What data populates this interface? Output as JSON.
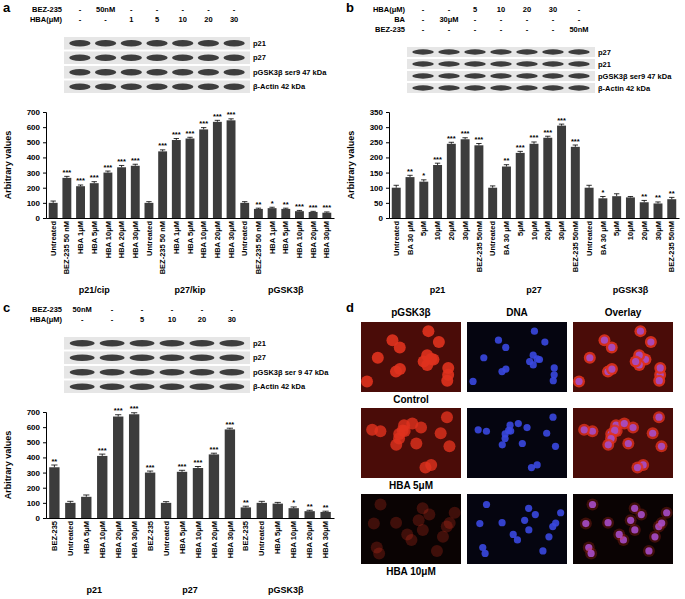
{
  "chart_data": [
    {
      "type": "bar",
      "y_label": "Arbitrary values",
      "color": "#3c3c3c",
      "categories": [
        "Untreated",
        "BEZ-235 50 nM",
        "HBA 1μM",
        "HBA 5μM",
        "HBA 10μM",
        "HBA 20μM",
        "HBA 30μM",
        "Untreated",
        "BEZ-235 50 nM",
        "HBA 1μM",
        "HBA 5μM",
        "HBA 10μM",
        "HBA 20μM",
        "HBA 30μM",
        "Untreated",
        "BEZ-235 50 nM",
        "HBA 1μM",
        "HBA 5μM",
        "HBA 10μM",
        "HBA 20μM",
        "HBA 30μM"
      ],
      "groups": [
        "p21/cip",
        "p21/cip",
        "p21/cip",
        "p21/cip",
        "p21/cip",
        "p21/cip",
        "p21/cip",
        "p27/kip",
        "p27/kip",
        "p27/kip",
        "p27/kip",
        "p27/kip",
        "p27/kip",
        "p27/kip",
        "pGSK3β",
        "pGSK3β",
        "pGSK3β",
        "pGSK3β",
        "pGSK3β",
        "pGSK3β",
        "pGSK3β"
      ],
      "values": [
        100,
        265,
        210,
        230,
        300,
        335,
        345,
        100,
        440,
        515,
        525,
        585,
        635,
        645,
        100,
        60,
        65,
        60,
        45,
        40,
        35
      ],
      "errors": [
        12,
        10,
        8,
        10,
        10,
        12,
        10,
        8,
        10,
        10,
        8,
        12,
        10,
        10,
        8,
        5,
        6,
        5,
        5,
        4,
        5
      ],
      "significance": [
        null,
        "***",
        "***",
        "***",
        "***",
        "***",
        "***",
        null,
        "***",
        "***",
        "***",
        "***",
        "***",
        "***",
        null,
        "**",
        "*",
        "**",
        "***",
        "***",
        "***"
      ],
      "ylim": [
        0,
        700
      ],
      "yticks": [
        0,
        100,
        200,
        300,
        400,
        500,
        600,
        700
      ]
    },
    {
      "type": "bar",
      "y_label": "Arbitrary values",
      "color": "#3c3c3c",
      "categories": [
        "Untreated",
        "BA 30 μM",
        "5μM",
        "10μM",
        "20μM",
        "30μM",
        "BEZ-235 50nM",
        "Untreated",
        "BA 30 μM",
        "5μM",
        "10μM",
        "20μM",
        "30μM",
        "BEZ-235 50nM",
        "Untreated",
        "BA 30 μM",
        "5μM",
        "10μM",
        "20μM",
        "30μM",
        "BEZ-235 50nM"
      ],
      "groups": [
        "p21",
        "p21",
        "p21",
        "p21",
        "p21",
        "p21",
        "p21",
        "p27",
        "p27",
        "p27",
        "p27",
        "p27",
        "p27",
        "p27",
        "pGSK3β",
        "pGSK3β",
        "pGSK3β",
        "pGSK3β",
        "pGSK3β",
        "pGSK3β",
        "pGSK3β"
      ],
      "values": [
        100,
        135,
        120,
        175,
        245,
        260,
        240,
        100,
        170,
        215,
        245,
        265,
        305,
        235,
        100,
        65,
        72,
        68,
        52,
        48,
        62
      ],
      "errors": [
        8,
        6,
        6,
        6,
        5,
        5,
        6,
        6,
        6,
        5,
        6,
        5,
        5,
        6,
        8,
        6,
        8,
        3,
        6,
        5,
        6
      ],
      "significance": [
        null,
        "**",
        "*",
        "***",
        "***",
        "***",
        "***",
        null,
        "**",
        "***",
        "***",
        "***",
        "***",
        "***",
        null,
        "*",
        null,
        null,
        "**",
        "**",
        "**"
      ],
      "ylim": [
        0,
        350
      ],
      "yticks": [
        0,
        50,
        100,
        150,
        200,
        250,
        300,
        350
      ]
    },
    {
      "type": "bar",
      "y_label": "Arbitrary values",
      "color": "#3c3c3c",
      "categories": [
        "BEZ-235",
        "Untreated",
        "HBA 5μM",
        "HBA 10μM",
        "HBA 20μM",
        "HBA 30μM",
        "BEZ-235",
        "Untreated",
        "HBA 5μM",
        "HBA 10μM",
        "HBA 20μM",
        "HBA 30μM",
        "BEZ-235",
        "Untreated",
        "HBA 5μM",
        "HBA 10μM",
        "HBA 20μM",
        "HBA 30μM"
      ],
      "groups": [
        "p21",
        "p21",
        "p21",
        "p21",
        "p21",
        "p21",
        "p27",
        "p27",
        "p27",
        "p27",
        "p27",
        "p27",
        "pGSK3β",
        "pGSK3β",
        "pGSK3β",
        "pGSK3β",
        "pGSK3β",
        "pGSK3β"
      ],
      "values": [
        335,
        100,
        140,
        410,
        670,
        685,
        300,
        100,
        305,
        330,
        420,
        585,
        70,
        100,
        95,
        65,
        45,
        40
      ],
      "errors": [
        15,
        10,
        12,
        12,
        12,
        10,
        10,
        8,
        10,
        10,
        8,
        8,
        8,
        10,
        8,
        8,
        6,
        5
      ],
      "significance": [
        "**",
        null,
        null,
        "***",
        "***",
        "***",
        "***",
        null,
        "***",
        "***",
        "***",
        "***",
        "**",
        null,
        null,
        "*",
        "**",
        "**"
      ],
      "ylim": [
        0,
        700
      ],
      "yticks": [
        0,
        100,
        200,
        300,
        400,
        500,
        600,
        700
      ]
    }
  ],
  "panel_labels": [
    "a",
    "b",
    "c",
    "d"
  ],
  "blots": [
    {
      "rows": [
        {
          "label": "BEZ-235",
          "lanes": [
            "-",
            "50nM",
            "-",
            "-",
            "-",
            "-",
            "-"
          ]
        },
        {
          "label": "HBA(μM)",
          "lanes": [
            "-",
            "-",
            "1",
            "5",
            "10",
            "20",
            "30"
          ]
        }
      ],
      "bands": [
        "p21",
        "p27",
        "pGSK3β ser9 47 kDa",
        "β-Actin 42 kDa"
      ]
    },
    {
      "rows": [
        {
          "label": "HBA(μM)",
          "lanes": [
            "-",
            "-",
            "5",
            "10",
            "20",
            "30",
            "-"
          ]
        },
        {
          "label": "BA",
          "lanes": [
            "-",
            "30μM",
            "-",
            "-",
            "-",
            "-",
            "-"
          ]
        },
        {
          "label": "BEZ-235",
          "lanes": [
            "-",
            "-",
            "-",
            "-",
            "-",
            "-",
            "50nM"
          ]
        }
      ],
      "bands": [
        "p27",
        "p21",
        "pGSK3β ser9 47 kDa",
        "β-Actin 42 kDa"
      ]
    },
    {
      "rows": [
        {
          "label": "BEZ-235",
          "lanes": [
            "50nM",
            "-",
            "-",
            "-",
            "-",
            "-"
          ]
        },
        {
          "label": "HBA(μM)",
          "lanes": [
            "-",
            "-",
            "5",
            "10",
            "20",
            "30"
          ]
        }
      ],
      "bands": [
        "p21",
        "p27",
        "pGSK3β ser 9 47 kDa",
        "β-Actin 42 kDa"
      ]
    }
  ],
  "microscopy": {
    "columns": [
      "pGSK3β",
      "DNA",
      "Overlay"
    ],
    "rows": [
      "Control",
      "HBA 5μM",
      "HBA 10μM"
    ]
  }
}
